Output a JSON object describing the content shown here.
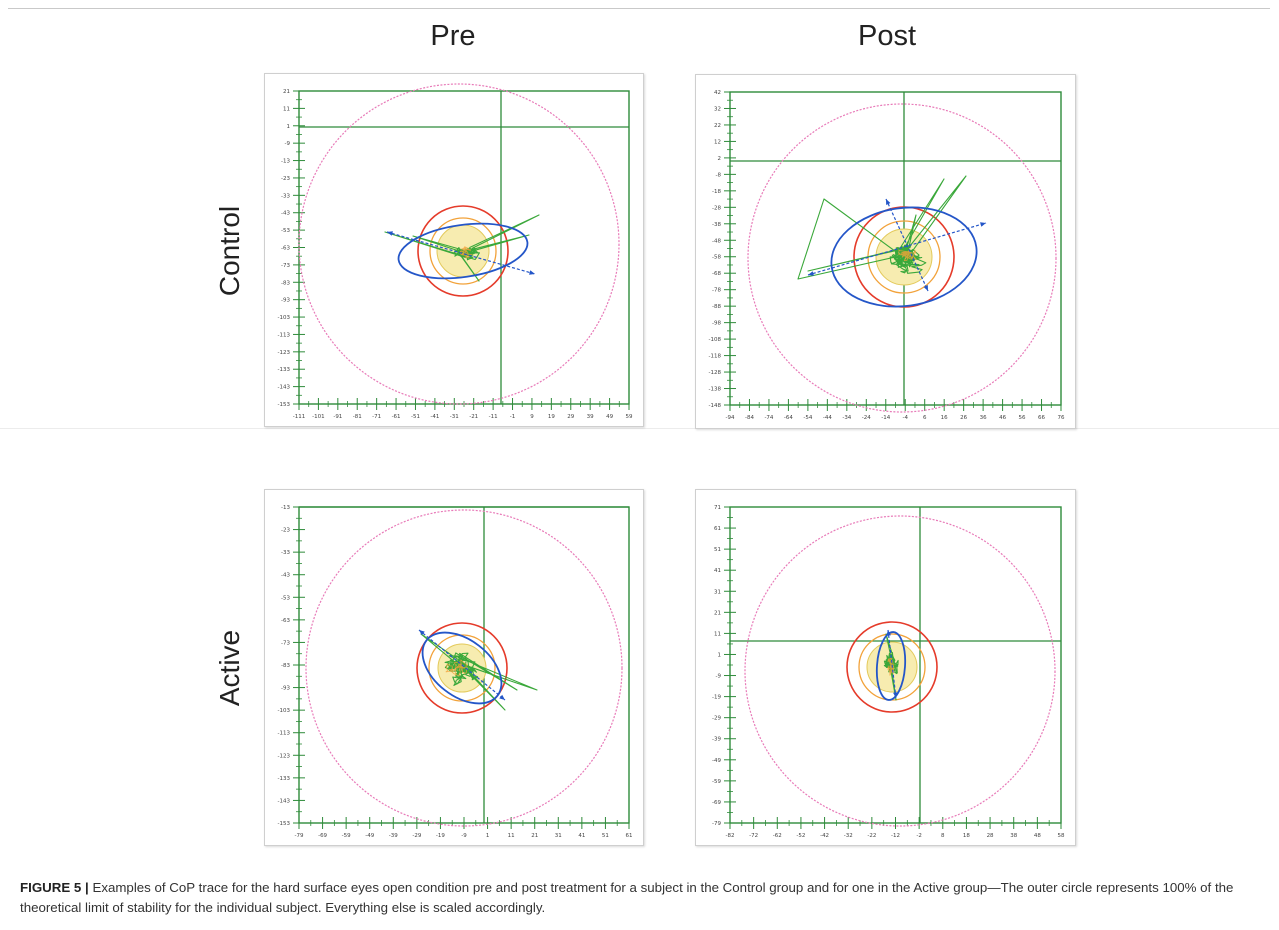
{
  "columns": [
    "Pre",
    "Post"
  ],
  "rows": [
    "Control",
    "Active"
  ],
  "caption": {
    "label": "FIGURE 5 |",
    "text": " Examples of CoP trace for the hard surface eyes open condition pre and post treatment for a subject in the Control group and for one in the Active group—The outer circle represents 100% of the theoretical limit of stability for the individual subject. Everything else is scaled accordingly."
  },
  "colors": {
    "axis": "#2e8b3a",
    "limit_circle": "#e87ab8",
    "red_circle": "#e53b2a",
    "orange_circle": "#f2a23a",
    "yellow_fill": "#f7ecb0",
    "ellipse": "#2456c8",
    "trace": "#3aa83a"
  },
  "panels": {
    "control_pre": {
      "y_ticks": [
        "21",
        "11",
        "1",
        "-9",
        "-13",
        "-23",
        "-33",
        "-43",
        "-53",
        "-63",
        "-73",
        "-83",
        "-93",
        "-103",
        "-113",
        "-123",
        "-133",
        "-143",
        "-153"
      ],
      "x_ticks": [
        "-111",
        "-101",
        "-91",
        "-81",
        "-71",
        "-61",
        "-51",
        "-41",
        "-31",
        "-21",
        "-11",
        "-1",
        "9",
        "19",
        "29",
        "39",
        "49",
        "59"
      ]
    },
    "control_post": {
      "y_ticks": [
        "42",
        "32",
        "22",
        "12",
        "2",
        "-8",
        "-18",
        "-28",
        "-38",
        "-48",
        "-58",
        "-68",
        "-78",
        "-88",
        "-98",
        "-108",
        "-118",
        "-128",
        "-138",
        "-148"
      ],
      "x_ticks": [
        "-94",
        "-84",
        "-74",
        "-64",
        "-54",
        "-44",
        "-34",
        "-24",
        "-14",
        "-4",
        "6",
        "16",
        "26",
        "36",
        "46",
        "56",
        "66",
        "76"
      ]
    },
    "active_pre": {
      "y_ticks": [
        "-13",
        "-23",
        "-33",
        "-43",
        "-53",
        "-63",
        "-73",
        "-83",
        "-93",
        "-103",
        "-113",
        "-123",
        "-133",
        "-143",
        "-153"
      ],
      "x_ticks": [
        "-79",
        "-69",
        "-59",
        "-49",
        "-39",
        "-29",
        "-19",
        "-9",
        "1",
        "11",
        "21",
        "31",
        "41",
        "51",
        "61"
      ]
    },
    "active_post": {
      "y_ticks": [
        "71",
        "61",
        "51",
        "41",
        "31",
        "21",
        "11",
        "1",
        "-9",
        "-19",
        "-29",
        "-39",
        "-49",
        "-59",
        "-69",
        "-79"
      ],
      "x_ticks": [
        "-82",
        "-72",
        "-62",
        "-52",
        "-42",
        "-32",
        "-22",
        "-12",
        "-2",
        "8",
        "18",
        "28",
        "38",
        "48",
        "58"
      ]
    }
  }
}
